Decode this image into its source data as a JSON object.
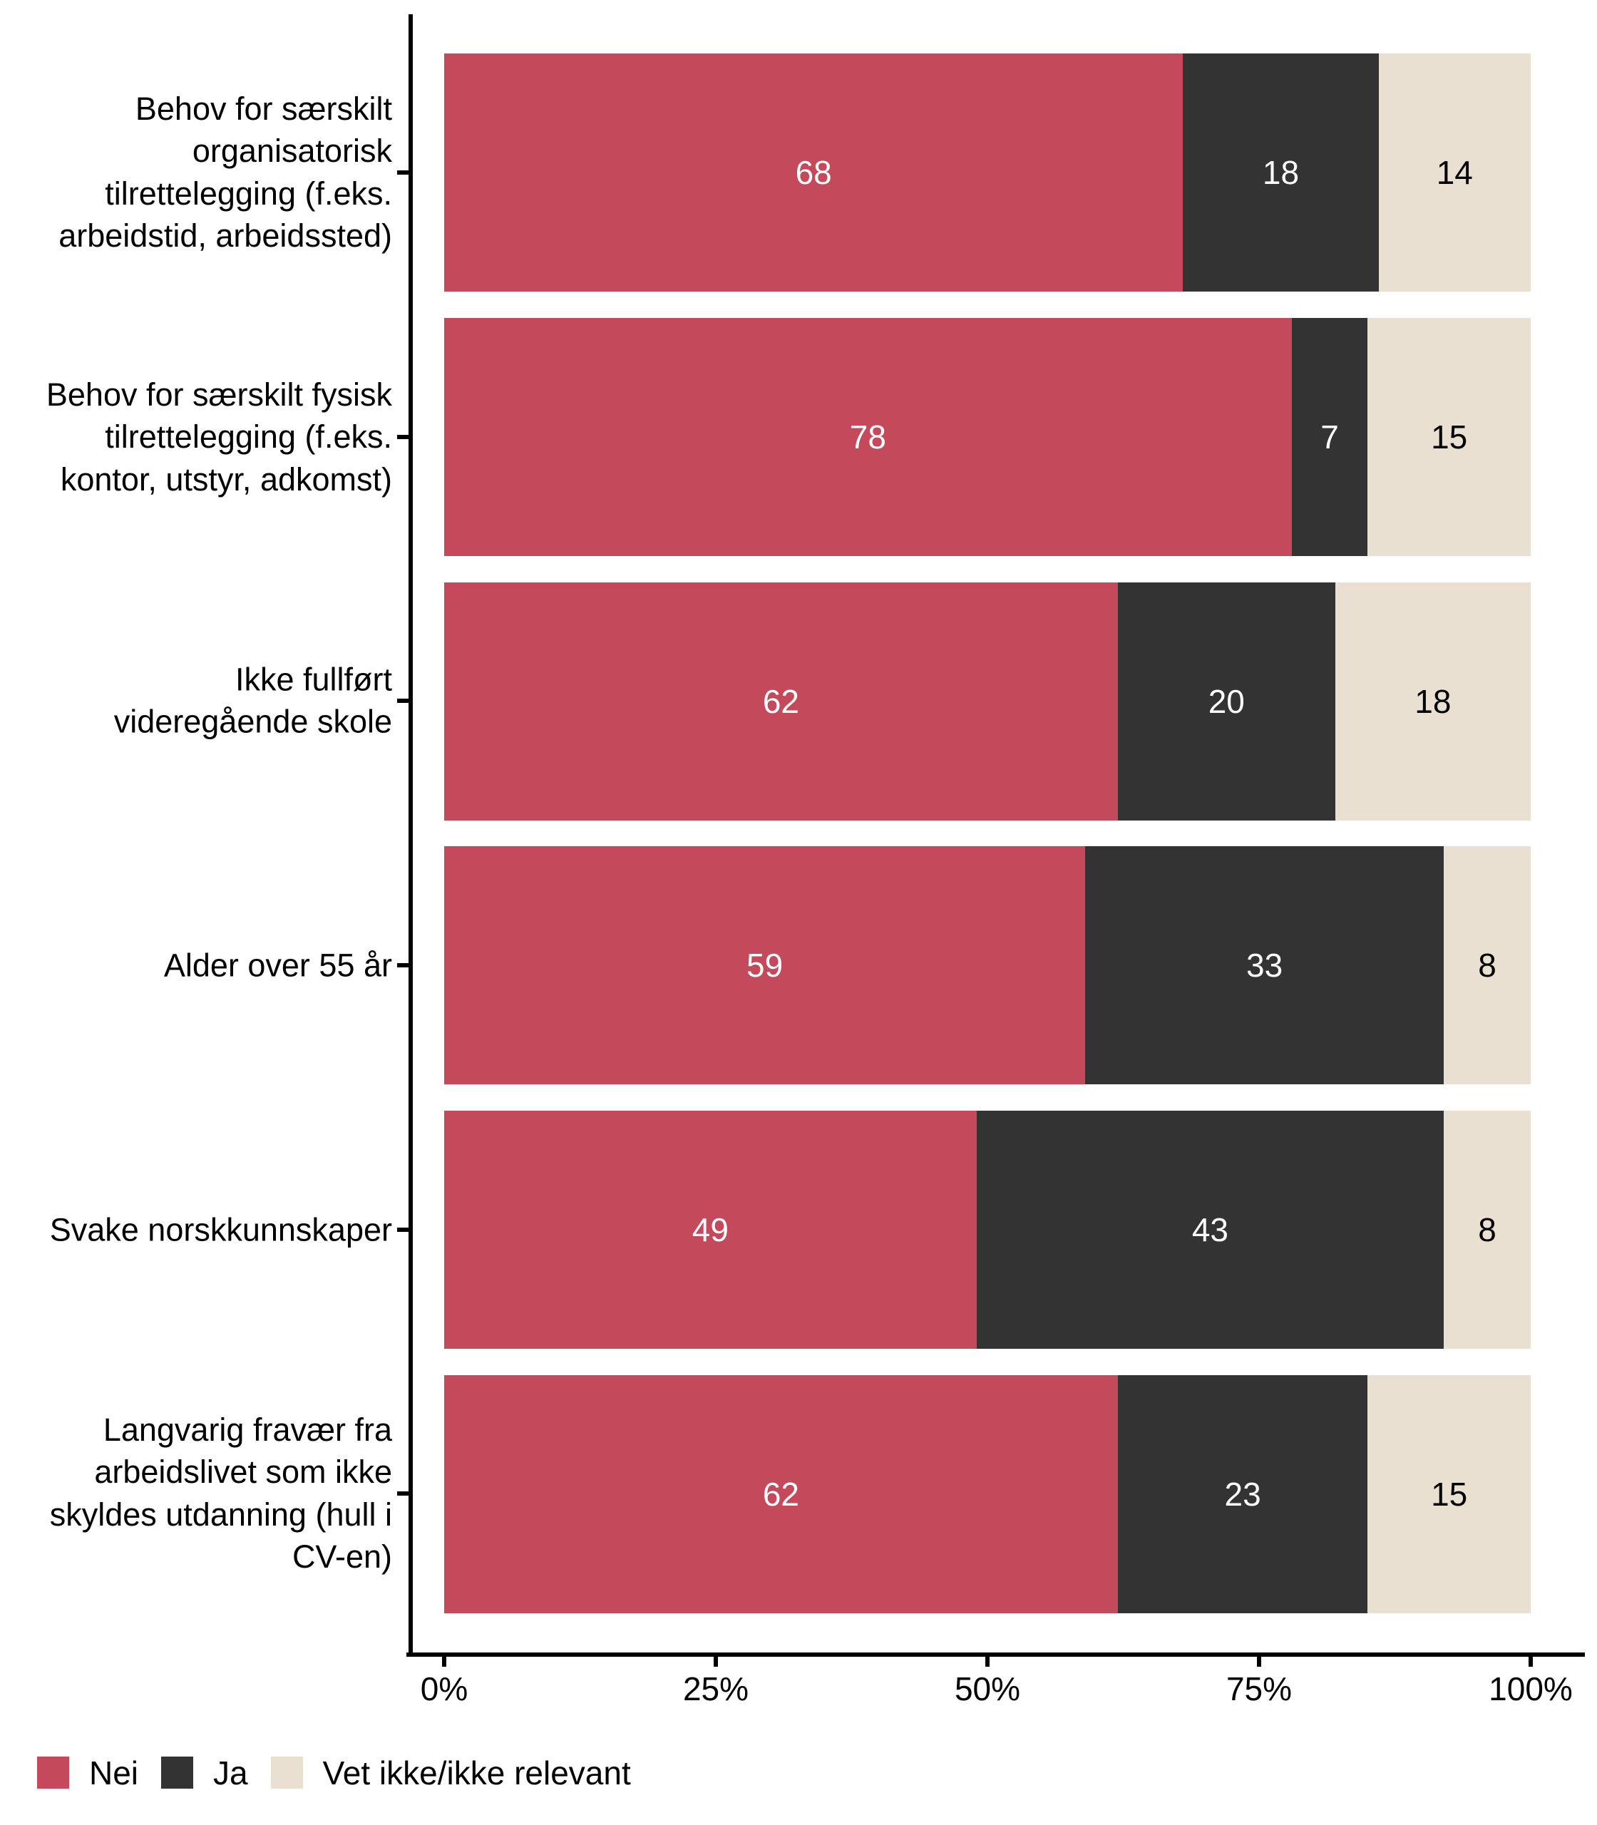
{
  "chart_data": {
    "type": "bar",
    "orientation": "horizontal",
    "stacked": true,
    "unit": "percent",
    "categories": [
      "Behov for særskilt\norganisatorisk\ntilrettelegging (f.eks.\narbeidstid, arbeidssted)",
      "Behov for særskilt fysisk\ntilrettelegging (f.eks.\nkontor, utstyr, adkomst)",
      "Ikke fullført\nvideregående skole",
      "Alder over 55 år",
      "Svake norskkunnskaper",
      "Langvarig fravær fra\narbeidslivet som ikke\nskyldes utdanning (hull i\nCV-en)"
    ],
    "series": [
      {
        "name": "Nei",
        "color": "#C4495A",
        "text_color": "#ffffff",
        "values": [
          68,
          78,
          62,
          59,
          49,
          62
        ]
      },
      {
        "name": "Ja",
        "color": "#333333",
        "text_color": "#ffffff",
        "values": [
          18,
          7,
          20,
          33,
          43,
          23
        ]
      },
      {
        "name": "Vet ikke/ikke relevant",
        "color": "#EAE0D2",
        "text_color": "#000000",
        "values": [
          14,
          15,
          18,
          8,
          8,
          15
        ]
      }
    ],
    "x_axis": {
      "min": 0,
      "max": 100,
      "tick_labels": [
        "0%",
        "25%",
        "50%",
        "75%",
        "100%"
      ],
      "grid": false
    },
    "legend": {
      "position": "bottom-left",
      "labels": [
        "Nei",
        "Ja",
        "Vet ikke/ikke relevant"
      ]
    },
    "title": "",
    "value_labels_shown": true
  }
}
